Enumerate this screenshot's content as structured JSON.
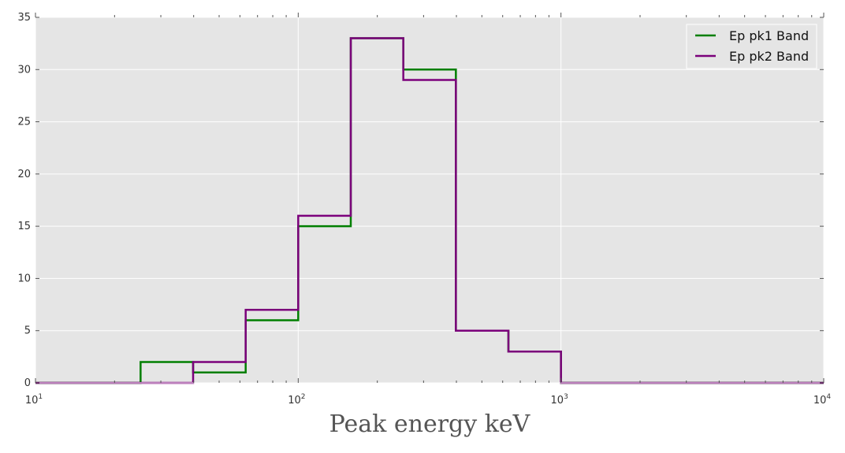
{
  "chart_data": {
    "type": "histogram-step",
    "title": "",
    "xlabel": "Peak energy keV",
    "ylabel": "",
    "xscale": "log",
    "xlim": [
      10,
      10000
    ],
    "ylim": [
      0,
      35
    ],
    "grid": true,
    "legend_position": "top-right",
    "background": "#e5e5e5",
    "x_ticks": [
      {
        "value": 10,
        "base": "10",
        "exp": "1"
      },
      {
        "value": 100,
        "base": "10",
        "exp": "2"
      },
      {
        "value": 1000,
        "base": "10",
        "exp": "3"
      },
      {
        "value": 10000,
        "base": "10",
        "exp": "4"
      }
    ],
    "y_ticks": [
      0,
      5,
      10,
      15,
      20,
      25,
      30,
      35
    ],
    "bin_edges": [
      10,
      15.85,
      25.12,
      39.81,
      63.1,
      100,
      158.49,
      251.19,
      398.11,
      630.96,
      1000,
      1584.89,
      2511.89,
      3981.07,
      6309.57,
      10000
    ],
    "series": [
      {
        "name": "Ep pk1 Band",
        "color": "#007f00",
        "counts": [
          0,
          0,
          2,
          1,
          6,
          15,
          33,
          30,
          5,
          3,
          0,
          0,
          0,
          0,
          0
        ]
      },
      {
        "name": "Ep pk2 Band",
        "color": "#7b007b",
        "counts": [
          0,
          0,
          0,
          2,
          7,
          16,
          33,
          29,
          5,
          3,
          0,
          0,
          0,
          0,
          0
        ]
      }
    ]
  }
}
